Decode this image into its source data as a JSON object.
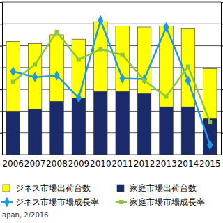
{
  "chart_data": {
    "type": "bar",
    "stacked": true,
    "categories": [
      "2006",
      "2007",
      "2008",
      "2009",
      "2010",
      "2011",
      "2012",
      "2013",
      "2014",
      "2015"
    ],
    "series": [
      {
        "name": "家庭市場出荷台数",
        "type": "bar",
        "color": "#1b2a6b",
        "values": [
          2.0,
          2.1,
          2.45,
          2.6,
          2.9,
          2.9,
          2.8,
          2.2,
          2.2,
          1.65
        ]
      },
      {
        "name": "ジネス市場出荷台数",
        "type": "bar",
        "color": "#ffff00",
        "values": [
          3.2,
          3.0,
          3.05,
          2.7,
          3.2,
          3.0,
          3.05,
          3.7,
          3.6,
          2.3
        ]
      },
      {
        "name": "ジネス市場市場成長率",
        "type": "line",
        "axis": "y2",
        "color": "#1e9be0",
        "marker": "diamond",
        "values": [
          3.2,
          0.6,
          1.3,
          -8.9,
          26.7,
          0.0,
          -0.3,
          23.5,
          -1.0,
          -30.5
        ]
      },
      {
        "name": "家庭市場市場成長率",
        "type": "line",
        "axis": "y2",
        "color": "#8cc63f",
        "marker": "square",
        "values": [
          -1.6,
          6.4,
          21.3,
          8.6,
          13.4,
          10.8,
          -1.0,
          -8.3,
          5.4,
          -20.0
        ]
      }
    ],
    "ylim": [
      0,
      7
    ],
    "yticks": [
      0,
      1,
      2,
      3,
      4,
      5,
      6,
      7
    ],
    "y2lim": [
      -35,
      35
    ],
    "y2ticks": [
      -35,
      -25,
      -15,
      -5,
      5,
      15,
      25,
      35
    ],
    "grid": true,
    "tick_labels": false,
    "legend": "bottom",
    "annotations": [
      "apan, 2/2016"
    ]
  }
}
